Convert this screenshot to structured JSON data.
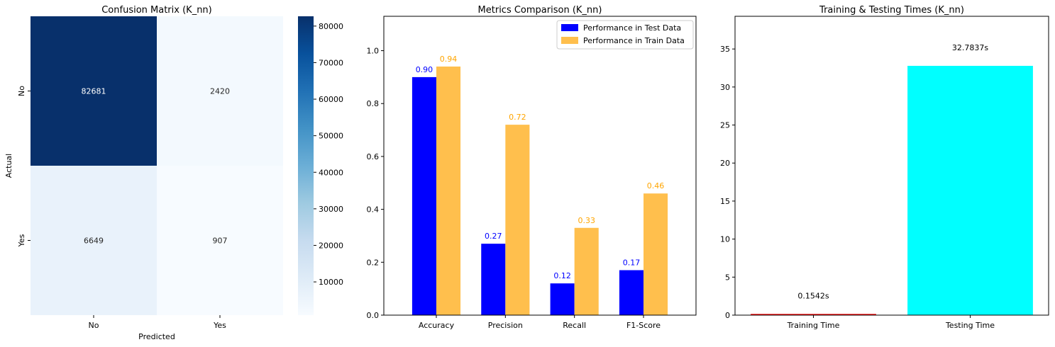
{
  "chart_data": [
    {
      "type": "heatmap",
      "title": "Confusion Matrix (K_nn)",
      "xlabel": "Predicted",
      "ylabel": "Actual",
      "x_categories": [
        "No",
        "Yes"
      ],
      "y_categories": [
        "No",
        "Yes"
      ],
      "values": [
        [
          82681,
          2420
        ],
        [
          6649,
          907
        ]
      ],
      "colormap": "Blues",
      "colorbar_range": [
        907,
        82681
      ],
      "colorbar_ticks": [
        "10000",
        "20000",
        "30000",
        "40000",
        "50000",
        "60000",
        "70000",
        "80000"
      ]
    },
    {
      "type": "bar",
      "title": "Metrics Comparison (K_nn)",
      "categories": [
        "Accuracy",
        "Precision",
        "Recall",
        "F1-Score"
      ],
      "series": [
        {
          "name": "Performance in Test Data",
          "values": [
            0.9,
            0.27,
            0.12,
            0.17
          ],
          "labels": [
            "0.90",
            "0.27",
            "0.12",
            "0.17"
          ],
          "color": "#0000ff"
        },
        {
          "name": "Performance in Train Data",
          "values": [
            0.94,
            0.72,
            0.33,
            0.46
          ],
          "labels": [
            "0.94",
            "0.72",
            "0.33",
            "0.46"
          ],
          "color": "#ffbf4d"
        }
      ],
      "ylim": [
        0,
        1.13
      ],
      "yticks": [
        "0.0",
        "0.2",
        "0.4",
        "0.6",
        "0.8",
        "1.0"
      ],
      "legend_position": "top-right"
    },
    {
      "type": "bar",
      "title": "Training & Testing Times (K_nn)",
      "categories": [
        "Training Time",
        "Testing Time"
      ],
      "values": [
        0.1542,
        32.7837
      ],
      "labels": [
        "0.1542s",
        "32.7837s"
      ],
      "colors": [
        "#ff0000",
        "#00ffff"
      ],
      "ylim": [
        0,
        39.3
      ],
      "yticks": [
        "0",
        "5",
        "10",
        "15",
        "20",
        "25",
        "30",
        "35"
      ]
    }
  ]
}
